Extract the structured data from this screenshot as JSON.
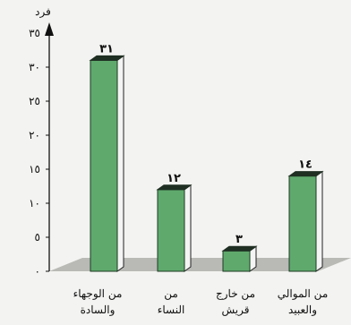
{
  "chart_data": {
    "type": "bar",
    "title": "",
    "xlabel": "",
    "ylabel": "فرد",
    "ylim": [
      0,
      35
    ],
    "yticks": [
      "٠",
      "٥",
      "١٠",
      "١٥",
      "٢٠",
      "٢٥",
      "٣٠",
      "٣٥"
    ],
    "categories": [
      [
        "من الوجهاء",
        "والسادة"
      ],
      [
        "من",
        "النساء"
      ],
      [
        "من خارج",
        "قريش"
      ],
      [
        "من الموالي",
        "والعبيد"
      ]
    ],
    "values": [
      31,
      12,
      3,
      14
    ],
    "data_labels": [
      "٣١",
      "١٢",
      "٣",
      "١٤"
    ],
    "grid": false,
    "legend": "none",
    "style": "3d",
    "colors": {
      "bar_front": "#5fa96d",
      "bar_side": "#f4f4f4",
      "bar_top": "#1f2f22",
      "floor": "#b9b9b6",
      "axis": "#111111"
    }
  }
}
